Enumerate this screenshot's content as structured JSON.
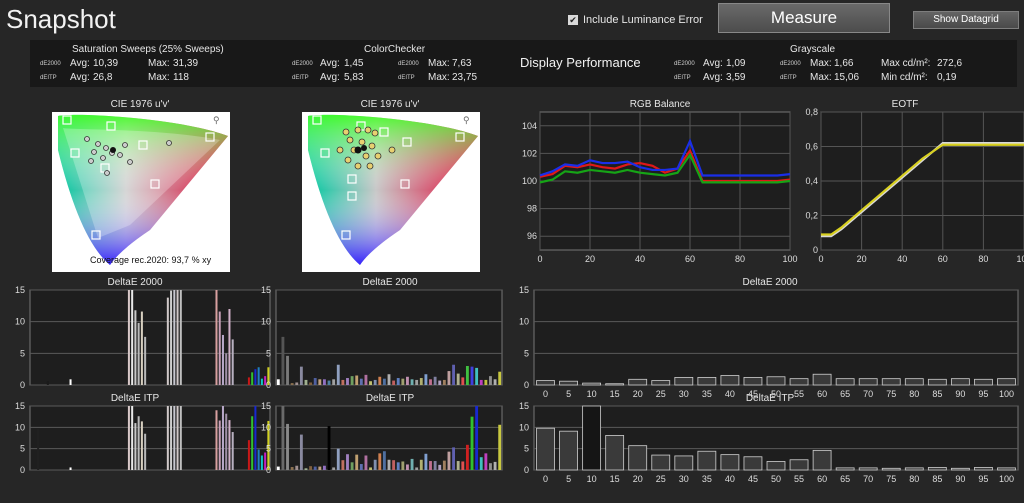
{
  "app": {
    "title": "Snapshot"
  },
  "controls": {
    "include_luminance_label": "Include Luminance Error",
    "include_luminance_checked": true,
    "measure_label": "Measure",
    "show_datagrid_label": "Show Datagrid"
  },
  "summary": {
    "saturation": {
      "title": "Saturation Sweeps (25% Sweeps)",
      "rows": [
        {
          "tag": "dE2000",
          "avg_label": "Avg:",
          "avg": "10,39",
          "max_label": "Max:",
          "max": "31,39"
        },
        {
          "tag": "dEITP",
          "avg_label": "Avg:",
          "avg": "26,8",
          "max_label": "Max:",
          "max": "118"
        }
      ]
    },
    "colorchecker": {
      "title": "ColorChecker",
      "rows": [
        {
          "tag": "dE2000",
          "avg_label": "Avg:",
          "avg": "1,45",
          "tag2": "dE2000",
          "max_label": "Max:",
          "max": "7,63"
        },
        {
          "tag": "dEITP",
          "avg_label": "Avg:",
          "avg": "5,83",
          "tag2": "dEITP",
          "max_label": "Max:",
          "max": "23,75"
        }
      ]
    },
    "display_performance": "Display Performance",
    "grayscale": {
      "title": "Grayscale",
      "rows": [
        {
          "tag": "dE2000",
          "avg_label": "Avg:",
          "avg": "1,09",
          "tag2": "dE2000",
          "max_label": "Max:",
          "max": "1,66",
          "extra_label": "Max cd/m²:",
          "extra": "272,6"
        },
        {
          "tag": "dEITP",
          "avg_label": "Avg:",
          "avg": "3,59",
          "tag2": "dEITP",
          "max_label": "Max:",
          "max": "15,06",
          "extra_label": "Min cd/m²:",
          "extra": "0,19"
        }
      ]
    }
  },
  "panels": {
    "cie_left": {
      "title": "CIE 1976 u'v'",
      "coverage": "Coverage rec.2020:  93,7 % xy",
      "zoom_icon": "magnifier-icon"
    },
    "cie_right": {
      "title": "CIE 1976 u'v'",
      "zoom_icon": "magnifier-icon"
    },
    "rgb_balance": {
      "title": "RGB Balance"
    },
    "eotf": {
      "title": "EOTF"
    },
    "sat_de2000": {
      "title": "DeltaE 2000"
    },
    "cc_de2000": {
      "title": "DeltaE 2000"
    },
    "gs_de2000": {
      "title": "DeltaE 2000"
    },
    "sat_itp": {
      "title": "DeltaE ITP"
    },
    "cc_itp": {
      "title": "DeltaE ITP"
    },
    "gs_itp": {
      "title": "DeltaE ITP"
    }
  },
  "chart_data": [
    {
      "id": "rgb_balance",
      "type": "line",
      "x": [
        0,
        5,
        10,
        15,
        20,
        25,
        30,
        35,
        40,
        45,
        50,
        55,
        60,
        65,
        70,
        75,
        80,
        85,
        90,
        95,
        100
      ],
      "xticks": [
        0,
        20,
        40,
        60,
        80,
        100
      ],
      "yticks": [
        96,
        98,
        100,
        102,
        104
      ],
      "ylim": [
        95,
        105
      ],
      "series": [
        {
          "color": "#e01818",
          "values": [
            100.3,
            100.5,
            101.1,
            101.0,
            101.2,
            101.0,
            100.9,
            101.2,
            101.3,
            101.1,
            100.6,
            100.9,
            102.2,
            100.0,
            100.0,
            100.0,
            100.0,
            100.0,
            100.0,
            100.0,
            100.1
          ]
        },
        {
          "color": "#16a416",
          "values": [
            99.9,
            100.1,
            100.7,
            100.6,
            100.8,
            100.7,
            100.6,
            100.8,
            100.6,
            100.5,
            100.4,
            100.6,
            101.9,
            99.9,
            99.9,
            99.9,
            99.9,
            99.9,
            99.9,
            99.9,
            100.0
          ]
        },
        {
          "color": "#1a2ee8",
          "values": [
            100.4,
            100.7,
            101.2,
            101.1,
            101.5,
            101.3,
            101.3,
            101.4,
            101.0,
            100.8,
            100.8,
            100.9,
            102.9,
            100.4,
            100.4,
            100.4,
            100.4,
            100.4,
            100.4,
            100.4,
            100.5
          ]
        }
      ]
    },
    {
      "id": "eotf",
      "type": "line",
      "x": [
        0,
        5,
        10,
        20,
        30,
        40,
        50,
        60,
        65,
        70,
        80,
        90,
        100
      ],
      "xticks": [
        0,
        20,
        40,
        60,
        80,
        100
      ],
      "yticks": [
        0,
        0.2,
        0.4,
        0.6,
        0.8
      ],
      "ytick_labels": [
        "0",
        "0,2",
        "0,4",
        "0,6",
        "0,8"
      ],
      "ylim": [
        0,
        0.8
      ],
      "series": [
        {
          "color": "#d8d8d8",
          "values": [
            0.08,
            0.08,
            0.12,
            0.22,
            0.32,
            0.42,
            0.52,
            0.62,
            0.62,
            0.62,
            0.62,
            0.62,
            0.62
          ]
        },
        {
          "color": "#d8d020",
          "values": [
            0.09,
            0.09,
            0.13,
            0.23,
            0.33,
            0.43,
            0.53,
            0.61,
            0.61,
            0.61,
            0.61,
            0.61,
            0.61
          ]
        }
      ]
    },
    {
      "id": "sat_de2000",
      "type": "bar",
      "ylim": [
        0,
        15
      ],
      "yticks": [
        0,
        5,
        10,
        15
      ],
      "values": [
        0,
        0,
        0,
        0,
        0,
        0.6,
        0,
        0,
        0,
        0,
        0,
        0,
        0.9,
        0,
        0,
        0,
        0,
        0,
        0,
        0,
        0,
        0,
        0,
        0,
        0,
        0,
        0,
        0,
        0,
        0,
        15,
        15,
        11.8,
        9.8,
        11.6,
        7.6,
        0,
        0,
        0,
        0,
        0,
        0,
        13.8,
        14.9,
        15,
        15,
        15,
        0,
        0,
        0,
        0,
        0,
        0,
        0,
        0,
        0,
        0,
        16.2,
        11.6,
        7.9,
        5.0,
        12.0,
        7.2,
        0,
        0,
        0,
        0,
        1.2,
        2.0,
        2.5,
        2.8,
        1.0,
        1.4,
        2.8
      ],
      "colors": [
        "#111",
        "#111",
        "#111",
        "#111",
        "#111",
        "#1a1a1a",
        "#111",
        "#111",
        "#111",
        "#111",
        "#111",
        "#111",
        "#ffffff",
        "#111",
        "#111",
        "#111",
        "#111",
        "#111",
        "#111",
        "#111",
        "#111",
        "#111",
        "#111",
        "#111",
        "#111",
        "#111",
        "#111",
        "#111",
        "#111",
        "#111",
        "#d8c8c8",
        "#e8e8e8",
        "#c8c8c8",
        "#bbbbbb",
        "#d8d0c0",
        "#b8b8b8",
        "#111",
        "#111",
        "#111",
        "#111",
        "#111",
        "#111",
        "#cfc8c8",
        "#d0d0d0",
        "#c8c8d0",
        "#d0c8c8",
        "#c0c0c0",
        "#111",
        "#111",
        "#111",
        "#111",
        "#111",
        "#111",
        "#111",
        "#111",
        "#111",
        "#111",
        "#d8a0a0",
        "#c8a0b8",
        "#b8a8c8",
        "#a090a8",
        "#d0b0c8",
        "#b8b0c0",
        "#111",
        "#111",
        "#111",
        "#111",
        "#c81818",
        "#30c030",
        "#1828d0",
        "#2080c0",
        "#10c8c8",
        "#c020c0",
        "#d0d020"
      ]
    },
    {
      "id": "cc_de2000",
      "type": "bar",
      "ylim": [
        0,
        15
      ],
      "yticks": [
        0,
        5,
        10,
        15
      ],
      "values": [
        0.9,
        7.6,
        4.6,
        0.3,
        0.4,
        2.9,
        0.8,
        0.4,
        1.1,
        0.9,
        0.9,
        0.7,
        0.9,
        3.2,
        0.8,
        1.1,
        1.4,
        1.5,
        1.0,
        1.6,
        0.6,
        0.8,
        1.3,
        1.0,
        1.7,
        0.7,
        1.1,
        1.0,
        1.3,
        0.9,
        0.8,
        1.1,
        1.7,
        0.9,
        1.3,
        0.7,
        0.8,
        2.2,
        3.2,
        1.8,
        1.2,
        3.0,
        2.9,
        2.7,
        0.8,
        0.8,
        1.4,
        0.9,
        2.1
      ],
      "colors": [
        "#ffffff",
        "#555",
        "#7a7a7a",
        "#8a7050",
        "#a09090",
        "#8a8aa0",
        "#a0b090",
        "#806040",
        "#5060a0",
        "#c0a080",
        "#9070c0",
        "#5080a0",
        "#a0a0a0",
        "#90a0c0",
        "#c07060",
        "#a080c0",
        "#70a060",
        "#c0a070",
        "#6070b0",
        "#b070a0",
        "#c0c070",
        "#8090b0",
        "#d08050",
        "#5070a0",
        "#b0b0b0",
        "#c06060",
        "#6080c0",
        "#a0a070",
        "#c090b0",
        "#70b0b0",
        "#a0a0a0",
        "#b0b070",
        "#80a0d0",
        "#c07090",
        "#8080a0",
        "#b0a0c0",
        "#a08060",
        "#c0a0a0",
        "#6060b0",
        "#b0b090",
        "#e05050",
        "#40c040",
        "#4040e0",
        "#40c0c0",
        "#c040c0",
        "#c0c040",
        "#909090",
        "#b0b0b0",
        "#c8c840"
      ]
    },
    {
      "id": "gs_de2000",
      "type": "bar",
      "categories": [
        "0",
        "5",
        "10",
        "15",
        "20",
        "25",
        "30",
        "35",
        "40",
        "45",
        "50",
        "55",
        "60",
        "65",
        "70",
        "75",
        "80",
        "85",
        "90",
        "95",
        "100"
      ],
      "values": [
        0.7,
        0.6,
        0.3,
        0.2,
        0.9,
        0.7,
        1.2,
        1.2,
        1.5,
        1.2,
        1.3,
        1.0,
        1.7,
        1.0,
        1.0,
        1.0,
        1.0,
        0.9,
        1.0,
        0.9,
        1.0
      ],
      "ylim": [
        0,
        15
      ],
      "yticks": [
        0,
        5,
        10,
        15
      ]
    },
    {
      "id": "sat_itp",
      "type": "bar",
      "ylim": [
        0,
        15
      ],
      "yticks": [
        0,
        5,
        10,
        15
      ],
      "values": [
        0,
        0,
        9.7,
        0,
        0,
        0,
        0,
        0,
        0,
        0,
        0,
        0,
        0.6,
        0,
        0,
        0,
        0,
        0,
        0,
        0,
        0,
        0,
        0,
        0,
        0,
        0,
        0,
        0,
        0,
        0,
        15,
        15,
        11.0,
        12.6,
        11.4,
        8.5,
        0,
        0,
        0,
        0,
        0,
        0,
        15,
        15,
        15,
        15,
        15,
        0,
        0,
        0,
        0,
        0,
        0,
        0,
        0,
        0,
        0,
        14.0,
        11.6,
        15,
        13.2,
        11.7,
        8.9,
        0,
        0,
        0,
        0,
        7.0,
        12.6,
        15,
        4.8,
        3.4,
        4.1,
        11.5
      ],
      "colors": [
        "#111",
        "#111",
        "#202020",
        "#111",
        "#111",
        "#111",
        "#111",
        "#111",
        "#111",
        "#111",
        "#111",
        "#111",
        "#ffffff",
        "#111",
        "#111",
        "#111",
        "#111",
        "#111",
        "#111",
        "#111",
        "#111",
        "#111",
        "#111",
        "#111",
        "#111",
        "#111",
        "#111",
        "#111",
        "#111",
        "#111",
        "#d8c8c8",
        "#e8e8e8",
        "#c8c8c8",
        "#bbbbbb",
        "#d8d0c0",
        "#b8b8b8",
        "#111",
        "#111",
        "#111",
        "#111",
        "#111",
        "#111",
        "#cfc8c8",
        "#d0d0d0",
        "#c8c8d0",
        "#d0c8c8",
        "#c0c0c0",
        "#111",
        "#111",
        "#111",
        "#111",
        "#111",
        "#111",
        "#111",
        "#111",
        "#111",
        "#111",
        "#d8a0a0",
        "#c8a0b8",
        "#b8a8c8",
        "#a090a8",
        "#d0b0c8",
        "#b8b0c0",
        "#111",
        "#111",
        "#111",
        "#111",
        "#c81818",
        "#30c030",
        "#1828d0",
        "#2080c0",
        "#10c8c8",
        "#c020c0",
        "#d0d020"
      ]
    },
    {
      "id": "cc_itp",
      "type": "bar",
      "ylim": [
        0,
        15
      ],
      "yticks": [
        0,
        5,
        10,
        15
      ],
      "values": [
        0.8,
        15,
        10.8,
        0.7,
        1.0,
        8.3,
        0.4,
        0.9,
        0.8,
        0.8,
        1.0,
        10.3,
        0.6,
        5.0,
        2.3,
        3.7,
        1.8,
        3.6,
        1.4,
        3.4,
        0.6,
        2.4,
        3.9,
        4.4,
        2.4,
        2.3,
        1.8,
        2.0,
        1.3,
        2.6,
        0.6,
        2.4,
        3.8,
        2.1,
        2.1,
        1.2,
        2.2,
        4.3,
        5.3,
        2.1,
        2.0,
        5.9,
        12.5,
        15,
        3.0,
        3.9,
        1.6,
        1.9,
        10.6
      ],
      "colors": [
        "#ffffff",
        "#6a6a6a",
        "#8a8a8a",
        "#8a7050",
        "#a09090",
        "#8a8aa0",
        "#a0b090",
        "#806040",
        "#5060a0",
        "#c0a080",
        "#9070c0",
        "#000000",
        "#a0a0a0",
        "#90a0c0",
        "#c07060",
        "#a080c0",
        "#70a060",
        "#c0a070",
        "#6070b0",
        "#b070a0",
        "#c0c070",
        "#8090b0",
        "#d08050",
        "#5070a0",
        "#b0b0b0",
        "#c06060",
        "#6080c0",
        "#a0a070",
        "#c090b0",
        "#70b0b0",
        "#a0a0a0",
        "#b0b070",
        "#80a0d0",
        "#c07090",
        "#8080a0",
        "#b0a0c0",
        "#a08060",
        "#c0a0a0",
        "#6060b0",
        "#b0b090",
        "#e05050",
        "#d02020",
        "#30c030",
        "#1828d0",
        "#40c0c0",
        "#c040c0",
        "#909090",
        "#b0b0b0",
        "#c8c840"
      ]
    },
    {
      "id": "gs_itp",
      "type": "bar",
      "categories": [
        "0",
        "5",
        "10",
        "15",
        "20",
        "25",
        "30",
        "35",
        "40",
        "45",
        "50",
        "55",
        "60",
        "65",
        "70",
        "75",
        "80",
        "85",
        "90",
        "95",
        "100"
      ],
      "values": [
        9.8,
        9.1,
        15,
        8.1,
        5.7,
        3.5,
        3.3,
        4.4,
        3.6,
        3.1,
        2.0,
        2.4,
        4.6,
        0.5,
        0.5,
        0.4,
        0.5,
        0.6,
        0.4,
        0.6,
        0.5
      ],
      "ylim": [
        0,
        15
      ],
      "yticks": [
        0,
        5,
        10,
        15
      ]
    }
  ]
}
